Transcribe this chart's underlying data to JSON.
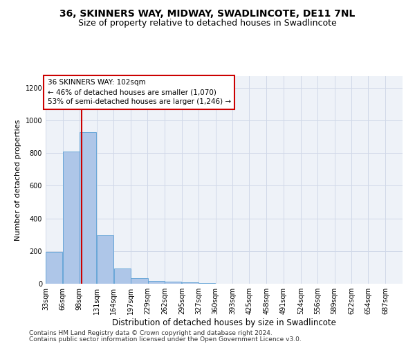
{
  "title1": "36, SKINNERS WAY, MIDWAY, SWADLINCOTE, DE11 7NL",
  "title2": "Size of property relative to detached houses in Swadlincote",
  "xlabel": "Distribution of detached houses by size in Swadlincote",
  "ylabel": "Number of detached properties",
  "footer1": "Contains HM Land Registry data © Crown copyright and database right 2024.",
  "footer2": "Contains public sector information licensed under the Open Government Licence v3.0.",
  "bar_left_edges": [
    33,
    66,
    98,
    131,
    164,
    197,
    229,
    262,
    295,
    327,
    360,
    393,
    425,
    458,
    491,
    524,
    556,
    589,
    622,
    654
  ],
  "bar_widths": [
    33,
    33,
    33,
    33,
    33,
    33,
    33,
    33,
    33,
    33,
    33,
    33,
    33,
    33,
    33,
    33,
    33,
    33,
    33,
    33
  ],
  "bar_heights": [
    195,
    810,
    925,
    295,
    95,
    35,
    18,
    12,
    10,
    4,
    2,
    1,
    1,
    0,
    0,
    0,
    0,
    0,
    0,
    0
  ],
  "bar_color": "#aec6e8",
  "bar_edge_color": "#5a9fd4",
  "annotation_box_text": "36 SKINNERS WAY: 102sqm\n← 46% of detached houses are smaller (1,070)\n53% of semi-detached houses are larger (1,246) →",
  "vline_x": 102,
  "vline_color": "#cc0000",
  "box_edge_color": "#cc0000",
  "ylim": [
    0,
    1270
  ],
  "yticks": [
    0,
    200,
    400,
    600,
    800,
    1000,
    1200
  ],
  "xtick_labels": [
    "33sqm",
    "66sqm",
    "98sqm",
    "131sqm",
    "164sqm",
    "197sqm",
    "229sqm",
    "262sqm",
    "295sqm",
    "327sqm",
    "360sqm",
    "393sqm",
    "425sqm",
    "458sqm",
    "491sqm",
    "524sqm",
    "556sqm",
    "589sqm",
    "622sqm",
    "654sqm",
    "687sqm"
  ],
  "xlim_left": 33,
  "xlim_right": 720,
  "grid_color": "#d0d8e8",
  "bg_color": "#eef2f8",
  "title1_fontsize": 10,
  "title2_fontsize": 9,
  "xlabel_fontsize": 8.5,
  "ylabel_fontsize": 8,
  "tick_fontsize": 7,
  "annotation_fontsize": 7.5,
  "footer_fontsize": 6.5
}
